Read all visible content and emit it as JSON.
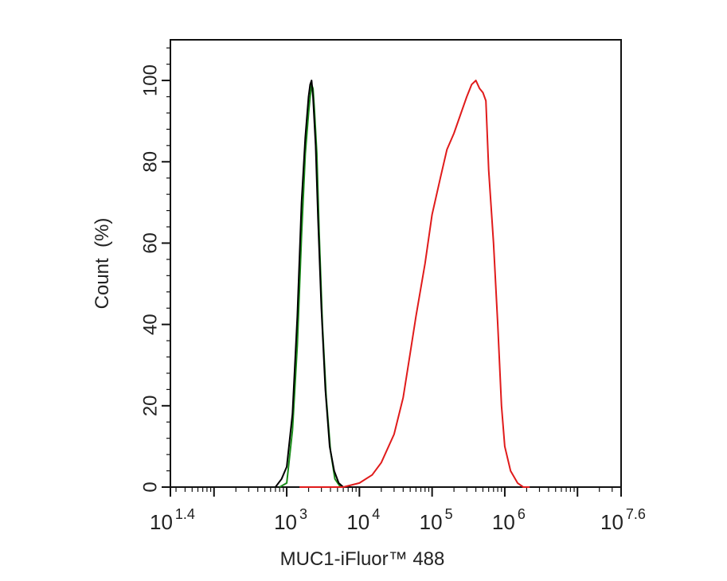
{
  "chart_data": {
    "type": "line",
    "title": "",
    "xlabel": "MUC1-iFluor™ 488",
    "ylabel": "Count  (%)",
    "x_scale": "log10",
    "xlim_exponent": [
      1.4,
      7.6
    ],
    "ylim": [
      0,
      110
    ],
    "y_ticks": [
      0,
      20,
      40,
      60,
      80,
      100
    ],
    "x_ticks": [
      {
        "base": "10",
        "exp": "1.4",
        "value_exp": 1.4
      },
      {
        "base": "10",
        "exp": "3",
        "value_exp": 3
      },
      {
        "base": "10",
        "exp": "4",
        "value_exp": 4
      },
      {
        "base": "10",
        "exp": "5",
        "value_exp": 5
      },
      {
        "base": "10",
        "exp": "6",
        "value_exp": 6
      },
      {
        "base": "10",
        "exp": "7.6",
        "value_exp": 7.6
      }
    ],
    "grid": false,
    "legend": "none",
    "series": [
      {
        "color": "#1a8c1a",
        "x": [
          800,
          1000,
          1200,
          1400,
          1600,
          1800,
          2000,
          2100,
          2200,
          2300,
          2400,
          2600,
          2800,
          3100,
          3500,
          4000,
          4600,
          5500
        ],
        "values": [
          0,
          1,
          14,
          35,
          62,
          82,
          92,
          96,
          99,
          98,
          93,
          82,
          62,
          40,
          22,
          9,
          2,
          0
        ]
      },
      {
        "color": "#000000",
        "x": [
          700,
          850,
          1000,
          1200,
          1400,
          1600,
          1800,
          2000,
          2100,
          2200,
          2300,
          2500,
          2700,
          3000,
          3400,
          3900,
          4500,
          5200,
          6000
        ],
        "values": [
          0,
          2,
          5,
          18,
          42,
          70,
          86,
          96,
          99,
          100,
          96,
          84,
          66,
          44,
          24,
          10,
          4,
          1,
          0
        ]
      },
      {
        "color": "#e01b1b",
        "x": [
          1500,
          3000,
          6000,
          10000,
          15000,
          20000,
          30000,
          40000,
          50000,
          60000,
          80000,
          100000,
          130000,
          160000,
          200000,
          250000,
          300000,
          350000,
          400000,
          450000,
          500000,
          550000,
          600000,
          700000,
          800000,
          900000,
          1000000,
          1200000,
          1500000,
          1800000,
          2200000
        ],
        "values": [
          0,
          0,
          0,
          1,
          3,
          6,
          13,
          22,
          33,
          42,
          55,
          67,
          76,
          83,
          87,
          92,
          96,
          99,
          100,
          98,
          97,
          95,
          78,
          60,
          40,
          20,
          10,
          4,
          1,
          0,
          0
        ]
      }
    ]
  }
}
